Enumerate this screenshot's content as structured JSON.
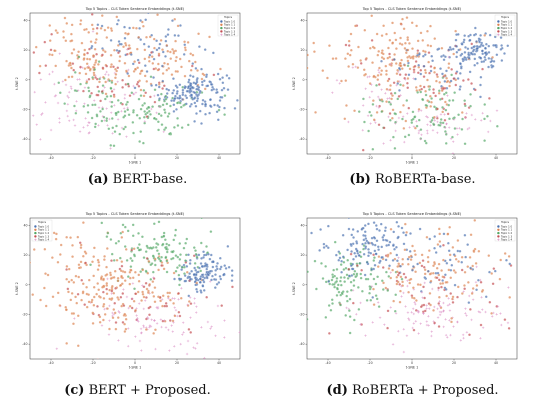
{
  "captions": [
    {
      "letter": "(a)",
      "text": " BERT-base."
    },
    {
      "letter": "(b)",
      "text": " RoBERTa-base."
    },
    {
      "letter": "(c)",
      "text": " BERT + Proposed."
    },
    {
      "letter": "(d)",
      "text": " RoBERTa + Proposed."
    }
  ],
  "colors": {
    "topic_1": "#4c72b0",
    "topic_2": "#dd8452",
    "topic_3": "#55a868",
    "topic_4": "#c44e52",
    "topic_5": "#da8bc3"
  },
  "chart_data": [
    {
      "type": "scatter",
      "panel": "a",
      "title": "Top 5 Topics - CLS Token Sentence Embeddings (t-SNE)",
      "xlabel": "t-SNE 1",
      "ylabel": "t-SNE 2",
      "xlim": [
        -50,
        50
      ],
      "ylim": [
        -50,
        45
      ],
      "xticks": [
        -40,
        -20,
        0,
        20,
        40
      ],
      "yticks": [
        -40,
        -20,
        0,
        20,
        40
      ],
      "legend": {
        "title": "Topics",
        "placement": "top-right",
        "entries": [
          "Topic 1 0",
          "Topic 1 1",
          "Topic 1 2",
          "Topic 1 3",
          "Topic 1 4"
        ]
      },
      "series": [
        {
          "name": "Topic 1 0",
          "color": "#4c72b0",
          "clusters": [
            {
              "cx": 28,
              "cy": -8,
              "sx": 8,
              "sy": 7,
              "n": 150
            },
            {
              "cx": 8,
              "cy": 22,
              "sx": 14,
              "sy": 10,
              "n": 60
            }
          ]
        },
        {
          "name": "Topic 1 1",
          "color": "#dd8452",
          "clusters": [
            {
              "cx": -15,
              "cy": 18,
              "sx": 15,
              "sy": 12,
              "n": 150
            },
            {
              "cx": 15,
              "cy": 10,
              "sx": 12,
              "sy": 12,
              "n": 60
            }
          ]
        },
        {
          "name": "Topic 1 2",
          "color": "#55a868",
          "clusters": [
            {
              "cx": 5,
              "cy": -22,
              "sx": 14,
              "sy": 10,
              "n": 110
            },
            {
              "cx": -20,
              "cy": -5,
              "sx": 10,
              "sy": 10,
              "n": 40
            }
          ]
        },
        {
          "name": "Topic 1 3",
          "color": "#c44e52",
          "clusters": [
            {
              "cx": -10,
              "cy": 5,
              "sx": 18,
              "sy": 14,
              "n": 60
            }
          ]
        },
        {
          "name": "Topic 1 4",
          "color": "#da8bc3",
          "clusters": [
            {
              "cx": -20,
              "cy": -15,
              "sx": 18,
              "sy": 15,
              "n": 100
            }
          ]
        }
      ]
    },
    {
      "type": "scatter",
      "panel": "b",
      "title": "Top 5 Topics - CLS Token Sentence Embeddings (t-SNE)",
      "xlabel": "t-SNE 1",
      "ylabel": "t-SNE 2",
      "xlim": [
        -50,
        50
      ],
      "ylim": [
        -50,
        45
      ],
      "xticks": [
        -40,
        -20,
        0,
        20,
        40
      ],
      "yticks": [
        -40,
        -20,
        0,
        20,
        40
      ],
      "legend": {
        "title": "Topics",
        "placement": "top-right",
        "entries": [
          "Topic 1 0",
          "Topic 1 1",
          "Topic 1 2",
          "Topic 1 3",
          "Topic 1 4"
        ]
      },
      "series": [
        {
          "name": "Topic 1 0",
          "color": "#4c72b0",
          "clusters": [
            {
              "cx": 30,
              "cy": 20,
              "sx": 8,
              "sy": 7,
              "n": 130
            },
            {
              "cx": 12,
              "cy": 5,
              "sx": 12,
              "sy": 10,
              "n": 40
            }
          ]
        },
        {
          "name": "Topic 1 1",
          "color": "#dd8452",
          "clusters": [
            {
              "cx": -10,
              "cy": 18,
              "sx": 18,
              "sy": 12,
              "n": 140
            },
            {
              "cx": 0,
              "cy": -10,
              "sx": 15,
              "sy": 12,
              "n": 60
            }
          ]
        },
        {
          "name": "Topic 1 2",
          "color": "#55a868",
          "clusters": [
            {
              "cx": 5,
              "cy": -22,
              "sx": 15,
              "sy": 10,
              "n": 100
            }
          ]
        },
        {
          "name": "Topic 1 3",
          "color": "#c44e52",
          "clusters": [
            {
              "cx": 0,
              "cy": 0,
              "sx": 20,
              "sy": 15,
              "n": 70
            }
          ]
        },
        {
          "name": "Topic 1 4",
          "color": "#da8bc3",
          "clusters": [
            {
              "cx": 10,
              "cy": -32,
              "sx": 14,
              "sy": 6,
              "n": 60
            },
            {
              "cx": -15,
              "cy": -10,
              "sx": 12,
              "sy": 12,
              "n": 40
            }
          ]
        }
      ]
    },
    {
      "type": "scatter",
      "panel": "c",
      "title": "Top 5 Topics - CLS Token Sentence Embeddings (t-SNE)",
      "xlabel": "t-SNE 1",
      "ylabel": "t-SNE 2",
      "xlim": [
        -50,
        50
      ],
      "ylim": [
        -50,
        45
      ],
      "xticks": [
        -40,
        -20,
        0,
        20,
        40
      ],
      "yticks": [
        -40,
        -20,
        0,
        20,
        40
      ],
      "legend": {
        "title": "Topics",
        "placement": "top-left",
        "entries": [
          "Topic 1 0",
          "Topic 1 1",
          "Topic 1 2",
          "Topic 1 3",
          "Topic 1 4"
        ]
      },
      "series": [
        {
          "name": "Topic 1 0",
          "color": "#4c72b0",
          "clusters": [
            {
              "cx": 33,
              "cy": 8,
              "sx": 6,
              "sy": 7,
              "n": 130
            }
          ]
        },
        {
          "name": "Topic 1 1",
          "color": "#dd8452",
          "clusters": [
            {
              "cx": -18,
              "cy": 0,
              "sx": 14,
              "sy": 18,
              "n": 170
            },
            {
              "cx": 5,
              "cy": -5,
              "sx": 12,
              "sy": 12,
              "n": 60
            }
          ]
        },
        {
          "name": "Topic 1 2",
          "color": "#55a868",
          "clusters": [
            {
              "cx": 10,
              "cy": 22,
              "sx": 12,
              "sy": 10,
              "n": 130
            }
          ]
        },
        {
          "name": "Topic 1 3",
          "color": "#c44e52",
          "clusters": [
            {
              "cx": 0,
              "cy": -10,
              "sx": 20,
              "sy": 15,
              "n": 60
            }
          ]
        },
        {
          "name": "Topic 1 4",
          "color": "#da8bc3",
          "clusters": [
            {
              "cx": 5,
              "cy": -22,
              "sx": 18,
              "sy": 12,
              "n": 110
            }
          ]
        }
      ]
    },
    {
      "type": "scatter",
      "panel": "d",
      "title": "Top 5 Topics - CLS Token Sentence Embeddings (t-SNE)",
      "xlabel": "t-SNE 1",
      "ylabel": "t-SNE 2",
      "xlim": [
        -50,
        50
      ],
      "ylim": [
        -50,
        45
      ],
      "xticks": [
        -40,
        -20,
        0,
        20,
        40
      ],
      "yticks": [
        -40,
        -20,
        0,
        20,
        40
      ],
      "legend": {
        "title": "Topics",
        "placement": "top-right",
        "entries": [
          "Topic 1 0",
          "Topic 1 1",
          "Topic 1 2",
          "Topic 1 3",
          "Topic 1 4"
        ]
      },
      "series": [
        {
          "name": "Topic 1 0",
          "color": "#4c72b0",
          "clusters": [
            {
              "cx": -20,
              "cy": 25,
              "sx": 12,
              "sy": 10,
              "n": 140
            },
            {
              "cx": 20,
              "cy": 10,
              "sx": 10,
              "sy": 10,
              "n": 40
            }
          ]
        },
        {
          "name": "Topic 1 1",
          "color": "#dd8452",
          "clusters": [
            {
              "cx": 10,
              "cy": 10,
              "sx": 15,
              "sy": 15,
              "n": 140
            }
          ]
        },
        {
          "name": "Topic 1 2",
          "color": "#55a868",
          "clusters": [
            {
              "cx": -28,
              "cy": 0,
              "sx": 10,
              "sy": 12,
              "n": 120
            }
          ]
        },
        {
          "name": "Topic 1 3",
          "color": "#c44e52",
          "clusters": [
            {
              "cx": 0,
              "cy": -5,
              "sx": 20,
              "sy": 15,
              "n": 60
            }
          ]
        },
        {
          "name": "Topic 1 4",
          "color": "#da8bc3",
          "clusters": [
            {
              "cx": 10,
              "cy": -20,
              "sx": 18,
              "sy": 12,
              "n": 120
            }
          ]
        }
      ]
    }
  ]
}
